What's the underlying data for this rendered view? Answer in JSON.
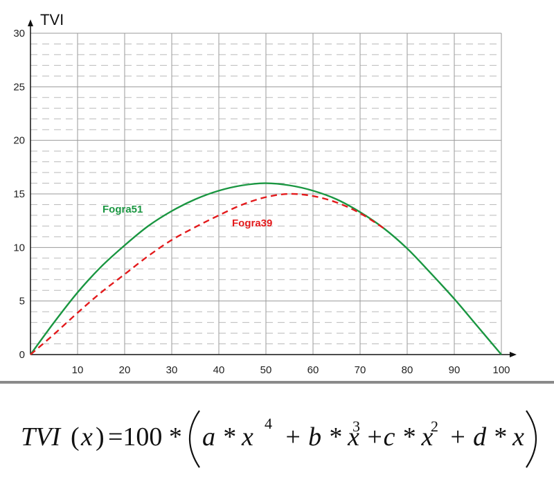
{
  "chart_data": {
    "type": "line",
    "ylabel": "TVI",
    "xlabel": "",
    "xlim": [
      0,
      100
    ],
    "ylim": [
      0,
      30
    ],
    "x_ticks": [
      "10",
      "20",
      "30",
      "40",
      "50",
      "60",
      "70",
      "80",
      "90",
      "100"
    ],
    "y_ticks": [
      "0",
      "5",
      "10",
      "15",
      "20",
      "25",
      "30"
    ],
    "grid": true,
    "series": [
      {
        "name": "Fogra51",
        "color": "#1a9641",
        "style": "solid",
        "x": [
          0,
          5,
          10,
          15,
          20,
          25,
          30,
          35,
          40,
          45,
          50,
          55,
          60,
          65,
          70,
          75,
          80,
          85,
          90,
          95,
          100
        ],
        "y": [
          0,
          3.0,
          5.8,
          8.2,
          10.2,
          12.0,
          13.4,
          14.5,
          15.3,
          15.8,
          16.0,
          15.8,
          15.3,
          14.5,
          13.3,
          11.8,
          9.9,
          7.6,
          5.2,
          2.6,
          0
        ]
      },
      {
        "name": "Fogra39",
        "color": "#e31a1c",
        "style": "dashed",
        "x": [
          0,
          5,
          10,
          15,
          20,
          25,
          30,
          35,
          40,
          45,
          50,
          55,
          60,
          65,
          70,
          75
        ],
        "y": [
          0,
          1.9,
          3.9,
          5.8,
          7.5,
          9.2,
          10.7,
          11.9,
          13.0,
          14.0,
          14.7,
          15.0,
          14.8,
          14.2,
          13.2,
          11.8
        ]
      }
    ]
  },
  "formula": {
    "lhs": "TVI",
    "arg": "x",
    "eq": "=100 *",
    "terms": [
      "a * x",
      "4",
      "+ b * x",
      "3",
      "+c * x",
      "2",
      "+ d * x"
    ]
  }
}
